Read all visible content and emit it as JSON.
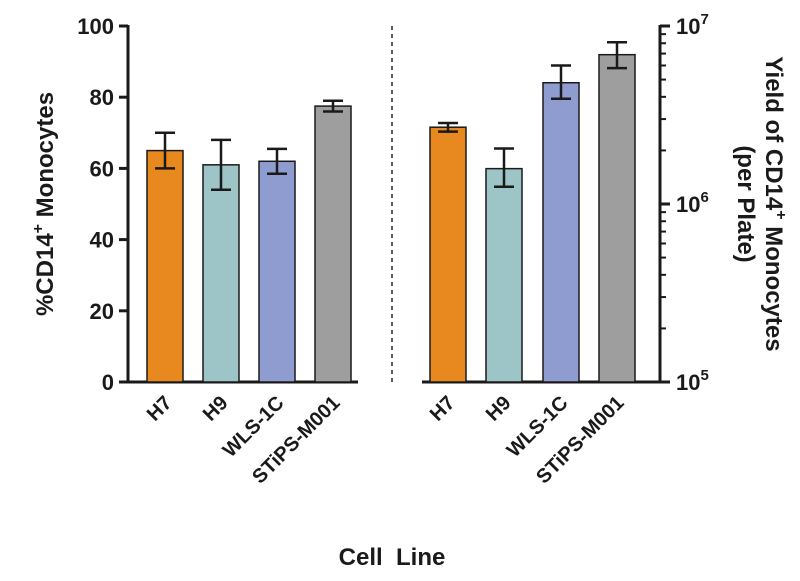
{
  "chart_data": {
    "type": "bar",
    "xlabel": "Cell  Line",
    "left_panel": {
      "ylabel_main": "%CD14",
      "ylabel_sup": "+",
      "ylabel_end": " Monocytes",
      "ylim": [
        0,
        100
      ],
      "yticks": [
        "0",
        "20",
        "40",
        "60",
        "80",
        "100"
      ],
      "categories": [
        "H7",
        "H9",
        "WLS-1C",
        "STiPS-M001"
      ],
      "values": [
        65,
        61,
        62,
        77.5
      ],
      "errors": [
        5,
        7,
        3.5,
        1.5
      ]
    },
    "right_panel": {
      "ylabel_line1_main": "Yield of CD14",
      "ylabel_line1_sup": "+",
      "ylabel_line1_end": " Monocytes",
      "ylabel_line2": "(per Plate)",
      "scale": "log",
      "ylim": [
        100000,
        10000000
      ],
      "yticks": [
        {
          "base": "10",
          "exp": "5"
        },
        {
          "base": "10",
          "exp": "6"
        },
        {
          "base": "10",
          "exp": "7"
        }
      ],
      "categories": [
        "H7",
        "H9",
        "WLS-1C",
        "STiPS-M001"
      ],
      "values": [
        2700000,
        1580000,
        4800000,
        6900000
      ],
      "err_low": [
        2550000,
        1250000,
        3900000,
        5800000
      ],
      "err_high": [
        2850000,
        2050000,
        6000000,
        8100000
      ]
    },
    "colors": [
      "#e8891f",
      "#9dc5c7",
      "#8f9ccf",
      "#9e9e9e"
    ],
    "grid": false,
    "legend": "none"
  }
}
